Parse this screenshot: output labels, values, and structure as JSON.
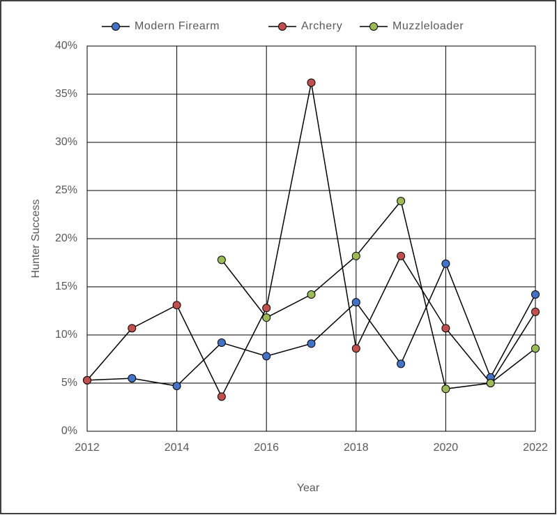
{
  "chart_data": {
    "type": "line",
    "x_label": "Year",
    "y_label": "Hunter Success",
    "x": [
      2012,
      2013,
      2014,
      2015,
      2016,
      2017,
      2018,
      2019,
      2020,
      2021,
      2022
    ],
    "series": [
      {
        "name": "Modern Firearm",
        "color": "#4472c4",
        "values": [
          5.3,
          5.5,
          4.7,
          9.2,
          7.8,
          9.1,
          13.4,
          7.0,
          17.4,
          5.6,
          14.2
        ]
      },
      {
        "name": "Archery",
        "color": "#c0504d",
        "values": [
          5.3,
          10.7,
          13.1,
          3.6,
          12.8,
          36.2,
          8.6,
          18.2,
          10.7,
          5.0,
          12.4
        ]
      },
      {
        "name": "Muzzleloader",
        "color": "#9bbb59",
        "values": [
          null,
          null,
          null,
          17.8,
          11.8,
          14.2,
          18.2,
          23.9,
          4.4,
          5.0,
          8.6
        ]
      }
    ],
    "line_color": "#000000",
    "xlim": [
      2012,
      2022
    ],
    "xticks": [
      2012,
      2014,
      2016,
      2018,
      2020,
      2022
    ],
    "ylim": [
      0,
      40
    ],
    "yticks": [
      {
        "value": 0,
        "label": "0%"
      },
      {
        "value": 5,
        "label": "5%"
      },
      {
        "value": 10,
        "label": "10%"
      },
      {
        "value": 15,
        "label": "15%"
      },
      {
        "value": 20,
        "label": "20%"
      },
      {
        "value": 25,
        "label": "25%"
      },
      {
        "value": 30,
        "label": "30%"
      },
      {
        "value": 35,
        "label": "35%"
      },
      {
        "value": 40,
        "label": "40%"
      }
    ],
    "grid": true,
    "legend": "top"
  }
}
